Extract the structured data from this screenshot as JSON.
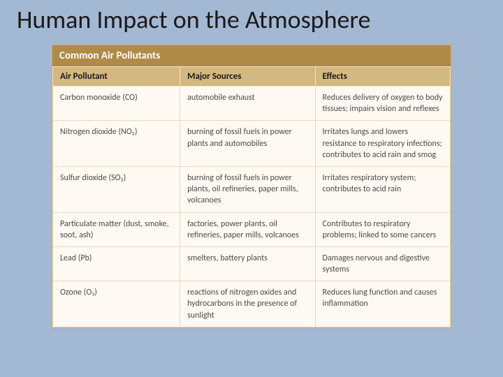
{
  "slide": {
    "title": "Human Impact on the Atmosphere",
    "background_color": "#a3b8d3"
  },
  "table": {
    "title": "Common Air Pollutants",
    "title_bar_color": "#b08a47",
    "title_text_color": "#ffffff",
    "header_bg_color": "#d4b882",
    "cell_bg_color": "#fef9f2",
    "border_color": "#e8d9b8",
    "columns": [
      {
        "label": "Air Pollutant",
        "width_pct": 32
      },
      {
        "label": "Major Sources",
        "width_pct": 34
      },
      {
        "label": "Effects",
        "width_pct": 34
      }
    ],
    "rows": [
      {
        "pollutant": "Carbon monoxide (CO)",
        "sources": "automobile exhaust",
        "effects": "Reduces delivery of oxygen to body tissues; impairs vision and reflexes"
      },
      {
        "pollutant": "Nitrogen dioxide (NO₂)",
        "sources": "burning of fossil fuels in power plants and automobiles",
        "effects": "Irritates lungs and lowers resistance to respiratory infections; contributes to acid rain and smog"
      },
      {
        "pollutant": "Sulfur dioxide (SO₂)",
        "sources": "burning of fossil fuels in power plants, oil refineries, paper mills, volcanoes",
        "effects": "Irritates respiratory system; contributes to acid rain"
      },
      {
        "pollutant": "Particulate matter (dust, smoke, soot, ash)",
        "sources": "factories, power plants, oil refineries, paper mills, volcanoes",
        "effects": "Contributes to respiratory problems; linked to some cancers"
      },
      {
        "pollutant": "Lead (Pb)",
        "sources": "smelters, battery plants",
        "effects": "Damages nervous and digestive systems"
      },
      {
        "pollutant": "Ozone (O₃)",
        "sources": "reactions of nitrogen oxides and hydrocarbons in the presence of sunlight",
        "effects": "Reduces lung function and causes inflammation"
      }
    ]
  }
}
